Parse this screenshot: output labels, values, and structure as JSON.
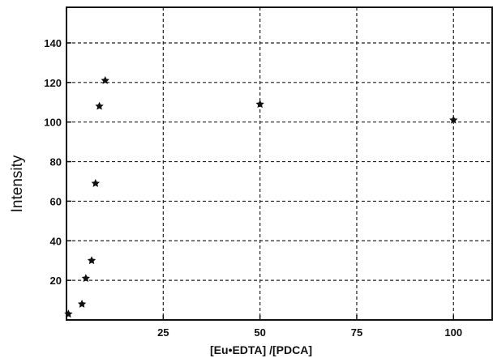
{
  "chart_data": {
    "type": "scatter",
    "xlabel": "[Eu•EDTA] /[PDCA]",
    "ylabel": "Intensity",
    "xlim": [
      0,
      110
    ],
    "ylim": [
      0,
      158
    ],
    "x_ticks": [
      25,
      50,
      75,
      100
    ],
    "y_ticks": [
      20,
      40,
      60,
      80,
      100,
      120,
      140
    ],
    "grid": true,
    "marker_color": "#111111",
    "series": [
      {
        "points": [
          {
            "x": 0.5,
            "y": 3
          },
          {
            "x": 4,
            "y": 8
          },
          {
            "x": 5,
            "y": 21
          },
          {
            "x": 6.5,
            "y": 30
          },
          {
            "x": 7.5,
            "y": 69
          },
          {
            "x": 8.5,
            "y": 108
          },
          {
            "x": 10,
            "y": 121
          },
          {
            "x": 50,
            "y": 109
          },
          {
            "x": 100,
            "y": 101
          }
        ]
      }
    ]
  }
}
